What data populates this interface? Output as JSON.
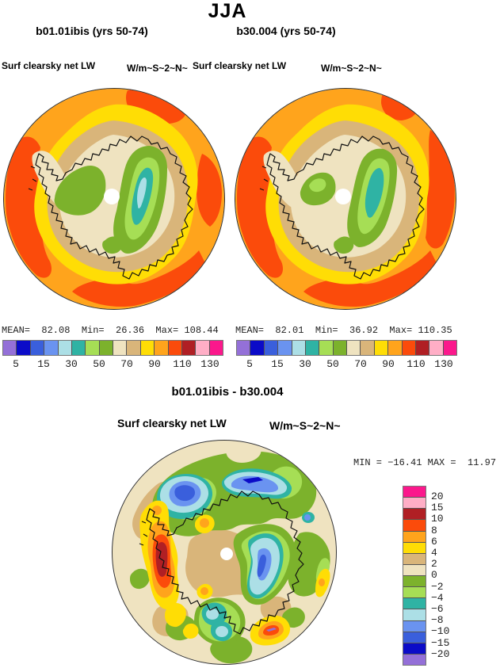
{
  "title": "JJA",
  "panels": {
    "left": {
      "title": "b01.01ibis (yrs 50-74)",
      "field_label": "Surf clearsky net LW",
      "units_label": "W/m~S~2~N~",
      "stats": "MEAN=  82.08  Min=  26.36  Max= 108.44"
    },
    "right": {
      "title": "b30.004 (yrs 50-74)",
      "field_label": "Surf clearsky net LW",
      "units_label": "W/m~S~2~N~",
      "stats": "MEAN=  82.01  Min=  36.92  Max= 110.35"
    }
  },
  "colorbar": {
    "tick_labels": [
      "5",
      "15",
      "30",
      "50",
      "70",
      "90",
      "110",
      "130"
    ],
    "colors": [
      "#9470D8",
      "#0B0BC8",
      "#3A5FDC",
      "#6A93F0",
      "#ACDFE6",
      "#2FB3A4",
      "#A6DE55",
      "#7CB22C",
      "#EFE3C0",
      "#D9B57A",
      "#FFDD05",
      "#FFA41C",
      "#FB4B0B",
      "#B01F24",
      "#FFAEC6",
      "#FB188C"
    ]
  },
  "diff": {
    "title": "b01.01ibis - b30.004",
    "field_label": "Surf clearsky net LW",
    "units_label": "W/m~S~2~N~",
    "minmax": "MIN = −16.41 MAX =  11.97",
    "colorbar": {
      "tick_labels": [
        "20",
        "15",
        "10",
        "8",
        "6",
        "4",
        "2",
        "0",
        "−2",
        "−4",
        "−6",
        "−8",
        "−10",
        "−15",
        "−20"
      ],
      "colors": [
        "#FB188C",
        "#FFAEC6",
        "#B01F24",
        "#FB4B0B",
        "#FFA41C",
        "#FFDD05",
        "#D9B57A",
        "#EFE3C0",
        "#7CB22C",
        "#A6DE55",
        "#2FB3A4",
        "#ACDFE6",
        "#6A93F0",
        "#3A5FDC",
        "#0B0BC8",
        "#9470D8"
      ]
    }
  },
  "chart_data": [
    {
      "type": "heatmap",
      "title": "b01.01ibis (yrs 50-74)",
      "subtitle": "Surf clearsky net LW",
      "units": "W/m~S~2~N~",
      "projection": "south-polar-stereographic",
      "season": "JJA",
      "stats": {
        "mean": 82.08,
        "min": 26.36,
        "max": 108.44
      },
      "contour_levels": [
        5,
        10,
        15,
        20,
        30,
        40,
        50,
        60,
        70,
        80,
        90,
        100,
        110,
        120,
        130
      ],
      "labeled_levels": [
        5,
        15,
        30,
        50,
        70,
        90,
        110,
        130
      ],
      "legend_position": "bottom"
    },
    {
      "type": "heatmap",
      "title": "b30.004 (yrs 50-74)",
      "subtitle": "Surf clearsky net LW",
      "units": "W/m~S~2~N~",
      "projection": "south-polar-stereographic",
      "season": "JJA",
      "stats": {
        "mean": 82.01,
        "min": 36.92,
        "max": 110.35
      },
      "contour_levels": [
        5,
        10,
        15,
        20,
        30,
        40,
        50,
        60,
        70,
        80,
        90,
        100,
        110,
        120,
        130
      ],
      "labeled_levels": [
        5,
        15,
        30,
        50,
        70,
        90,
        110,
        130
      ],
      "legend_position": "bottom"
    },
    {
      "type": "heatmap",
      "title": "b01.01ibis - b30.004",
      "subtitle": "Surf clearsky net LW",
      "units": "W/m~S~2~N~",
      "projection": "south-polar-stereographic",
      "season": "JJA",
      "stats": {
        "min": -16.41,
        "max": 11.97
      },
      "contour_levels": [
        20,
        15,
        10,
        8,
        6,
        4,
        2,
        0,
        -2,
        -4,
        -6,
        -8,
        -10,
        -15,
        -20
      ],
      "legend_position": "right"
    }
  ],
  "palette": {
    "purple": "#9470D8",
    "navy": "#0B0BC8",
    "royal": "#3A5FDC",
    "cornflower": "#6A93F0",
    "paleblue": "#ACDFE6",
    "teal": "#2FB3A4",
    "lightgreen": "#A6DE55",
    "olive": "#7CB22C",
    "cream": "#EFE3C0",
    "tan": "#D9B57A",
    "yellow": "#FFDD05",
    "orange": "#FFA41C",
    "orangered": "#FB4B0B",
    "darkred": "#B01F24",
    "pink": "#FFAEC6",
    "magenta": "#FB188C",
    "coast": "#111111",
    "circle_edge": "#333333"
  }
}
